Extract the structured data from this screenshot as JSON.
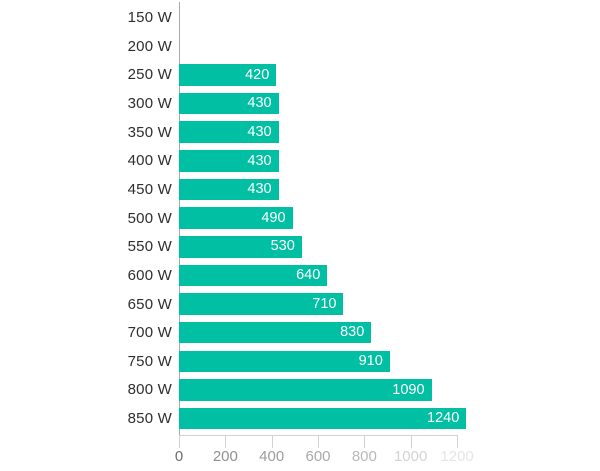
{
  "chart_data": {
    "type": "bar",
    "orientation": "horizontal",
    "title": "",
    "xlabel": "",
    "ylabel": "",
    "categories": [
      "150 W",
      "200 W",
      "250 W",
      "300 W",
      "350 W",
      "400 W",
      "450 W",
      "500 W",
      "550 W",
      "600 W",
      "650 W",
      "700 W",
      "750 W",
      "800 W",
      "850 W"
    ],
    "values": [
      null,
      null,
      420,
      430,
      430,
      430,
      430,
      490,
      530,
      640,
      710,
      830,
      910,
      1090,
      1240
    ],
    "value_labels": [
      "",
      "",
      "420",
      "430",
      "430",
      "430",
      "430",
      "490",
      "530",
      "640",
      "710",
      "830",
      "910",
      "1090",
      "1240"
    ],
    "xlim": [
      0,
      1200
    ],
    "x_ticks": [
      "0",
      "200",
      "400",
      "600",
      "800",
      "1000",
      "1200"
    ],
    "x_tick_values": [
      0,
      200,
      400,
      600,
      800,
      1000,
      1200
    ],
    "x_tick_colors": [
      "#6e6e6e",
      "#8f8f8f",
      "#9d9d9d",
      "#a9a9a9",
      "#b9b9b9",
      "#d3d3d3",
      "#e5e5e5"
    ],
    "grid": false,
    "legend": "none",
    "colors": {
      "bar": "#00bfa3",
      "bar_value_text": "#ffffff",
      "category_text": "#2e2e2e",
      "y_axis_line": "#a8a8a8",
      "x_axis_line": "#d2d2d2",
      "tick_mark": "#d2d2d2",
      "background": "#ffffff"
    }
  }
}
